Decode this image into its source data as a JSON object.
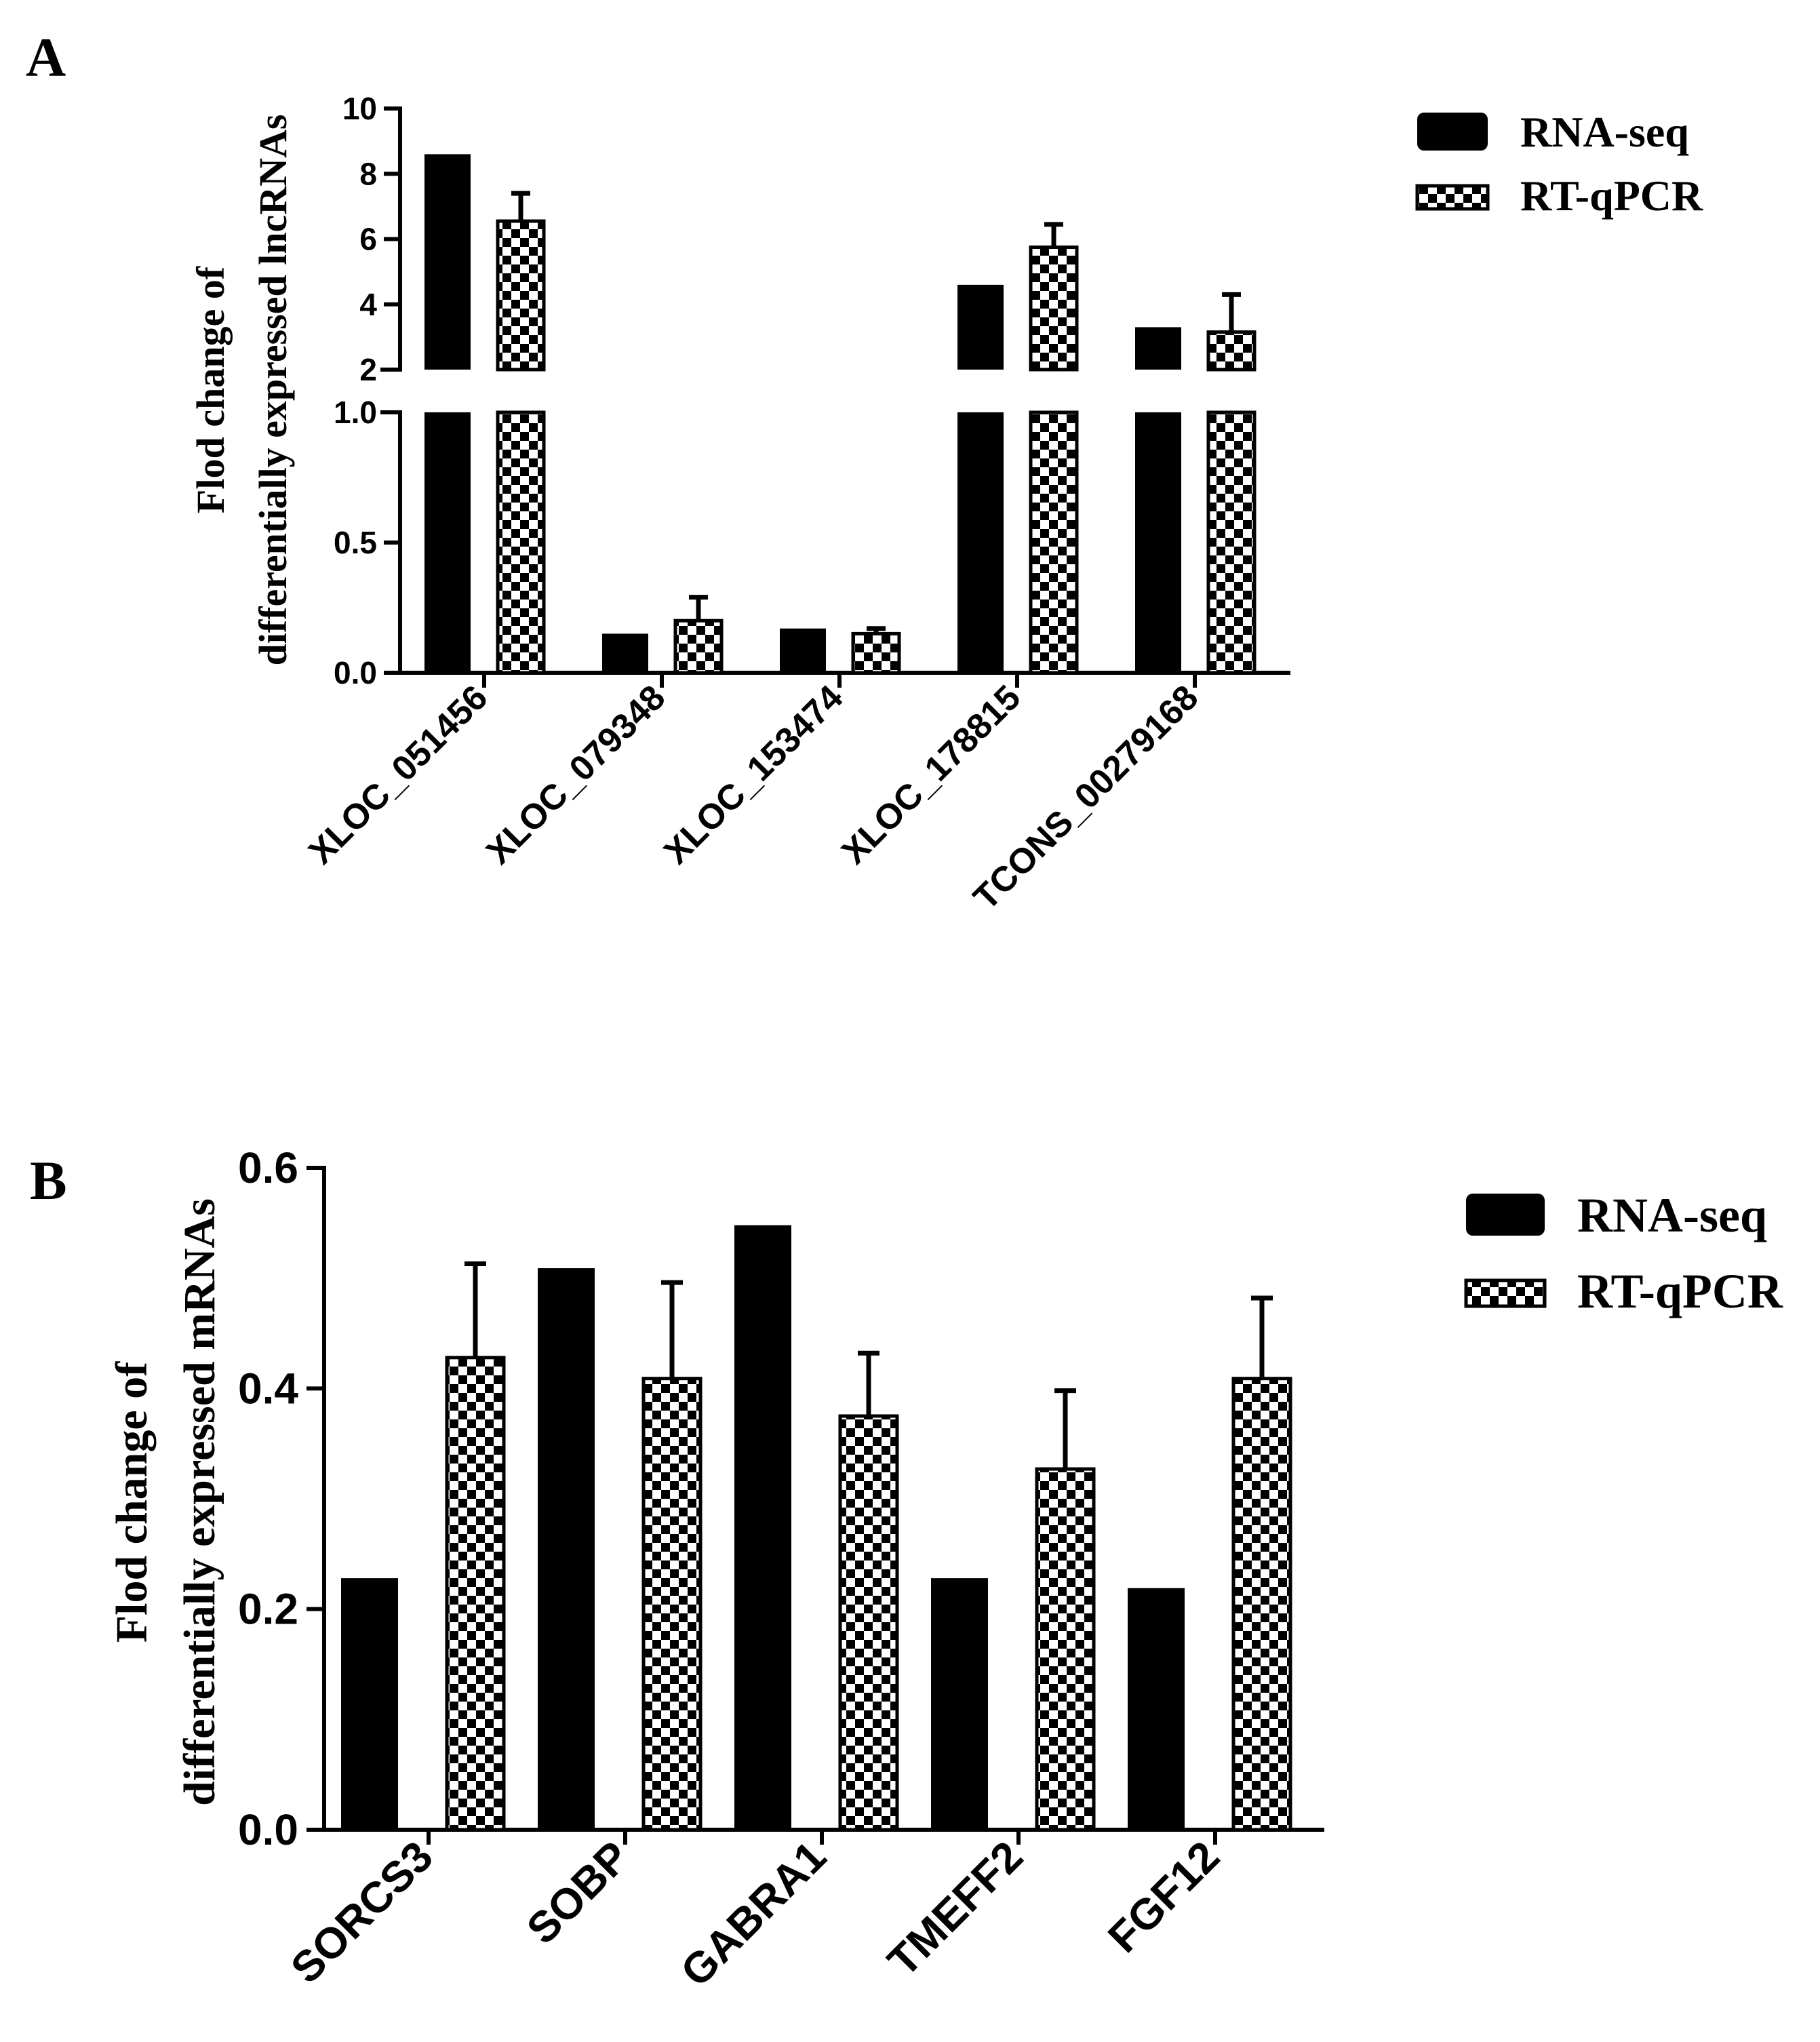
{
  "chart_data": [
    {
      "panel": "A",
      "type": "bar",
      "ylabel_lines": [
        "Flod change of",
        "differentially expressed lncRNAs"
      ],
      "categories": [
        "XLOC_051456",
        "XLOC_079348",
        "XLOC_153474",
        "XLOC_178815",
        "TCONS_00279168"
      ],
      "series": [
        {
          "name": "RNA-seq",
          "values": [
            8.6,
            0.15,
            0.17,
            4.6,
            3.3
          ],
          "error": [
            0,
            0,
            0,
            0,
            0
          ]
        },
        {
          "name": "RT-qPCR",
          "values": [
            6.55,
            0.2,
            0.15,
            5.75,
            3.15
          ],
          "error": [
            0.85,
            0.09,
            0.02,
            0.7,
            1.15
          ]
        }
      ],
      "axis_break": {
        "lower_range": [
          0,
          1.0
        ],
        "upper_range": [
          2,
          10
        ]
      },
      "lower_ticks": [
        "0.0",
        "0.5",
        "1.0"
      ],
      "upper_ticks": [
        "2",
        "4",
        "6",
        "8",
        "10"
      ],
      "legend": [
        "RNA-seq",
        "RT-qPCR"
      ],
      "legend_position": "top-right"
    },
    {
      "panel": "B",
      "type": "bar",
      "ylabel_lines": [
        "Flod change of",
        "differentially expressed mRNAs"
      ],
      "categories": [
        "SORCS3",
        "SOBP",
        "GABRA1",
        "TMEFF2",
        "FGF12"
      ],
      "series": [
        {
          "name": "RNA-seq",
          "values": [
            0.228,
            0.509,
            0.548,
            0.228,
            0.219
          ],
          "error": [
            0,
            0,
            0,
            0,
            0
          ]
        },
        {
          "name": "RT-qPCR",
          "values": [
            0.428,
            0.409,
            0.375,
            0.327,
            0.409
          ],
          "error": [
            0.085,
            0.087,
            0.057,
            0.071,
            0.073
          ]
        }
      ],
      "ylim": [
        0,
        0.6
      ],
      "ticks": [
        "0.0",
        "0.2",
        "0.4",
        "0.6"
      ],
      "legend": [
        "RNA-seq",
        "RT-qPCR"
      ],
      "legend_position": "top-right"
    }
  ]
}
